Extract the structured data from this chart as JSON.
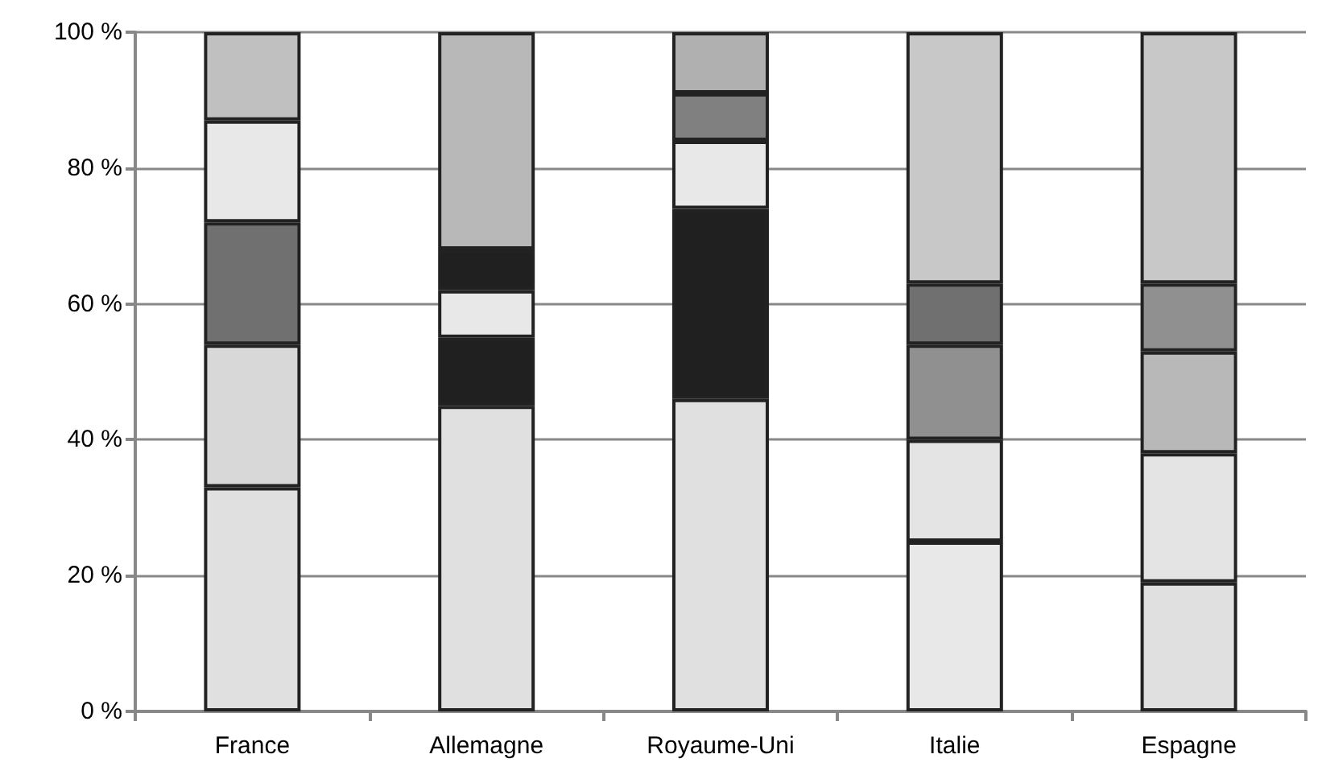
{
  "chart_data": {
    "type": "bar",
    "stacked": true,
    "categories": [
      "France",
      "Allemagne",
      "Royaume-Uni",
      "Italie",
      "Espagne"
    ],
    "series": [
      {
        "values": [
          33,
          45,
          46,
          25,
          19
        ],
        "colors": [
          "#e0e0e0",
          "#e0e0e0",
          "#e0e0e0",
          "#e8e8e8",
          "#e0e0e0"
        ]
      },
      {
        "values": [
          21,
          10,
          28,
          15,
          19
        ],
        "colors": [
          "#d8d8d8",
          "#202020",
          "#202020",
          "#e4e4e4",
          "#e4e4e4"
        ]
      },
      {
        "values": [
          18,
          7,
          10,
          14,
          15
        ],
        "colors": [
          "#707070",
          "#e8e8e8",
          "#e8e8e8",
          "#909090",
          "#b8b8b8"
        ]
      },
      {
        "values": [
          15,
          6,
          7,
          9,
          10
        ],
        "colors": [
          "#e8e8e8",
          "#202020",
          "#808080",
          "#707070",
          "#909090"
        ]
      },
      {
        "values": [
          13,
          32,
          9,
          37,
          37
        ],
        "colors": [
          "#c0c0c0",
          "#b8b8b8",
          "#b0b0b0",
          "#c8c8c8",
          "#c8c8c8"
        ]
      }
    ],
    "ylim": [
      0,
      100
    ],
    "yticks": [
      {
        "value": 0,
        "label": "0 %"
      },
      {
        "value": 20,
        "label": "20 %"
      },
      {
        "value": 40,
        "label": "40 %"
      },
      {
        "value": 60,
        "label": "60 %"
      },
      {
        "value": 80,
        "label": "80 %"
      },
      {
        "value": 100,
        "label": "100 %"
      }
    ],
    "grid": "y"
  }
}
